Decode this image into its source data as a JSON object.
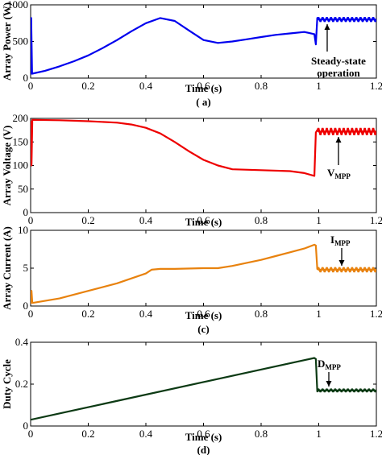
{
  "chart_data": [
    {
      "type": "line",
      "subplot_label": "( a)",
      "xlabel": "Time (s)",
      "ylabel": "Array Power (W)",
      "xlim": [
        0,
        1.2
      ],
      "ylim": [
        0,
        1000
      ],
      "xticks": [
        "0",
        "0.2",
        "0.4",
        "0.6",
        "0.8",
        "1",
        "1.2"
      ],
      "yticks": [
        "0",
        "500",
        "1000"
      ],
      "color": "#0000ee",
      "annotation": {
        "text_lines": [
          "Steady-state",
          "operation"
        ]
      },
      "series": [
        {
          "x": [
            0,
            0.002,
            0.005,
            0.05,
            0.1,
            0.15,
            0.2,
            0.25,
            0.3,
            0.35,
            0.4,
            0.45,
            0.5,
            0.55,
            0.6,
            0.65,
            0.7,
            0.75,
            0.8,
            0.85,
            0.9,
            0.95,
            0.985,
            0.99,
            0.995,
            1.0,
            1.2
          ],
          "y": [
            50,
            820,
            60,
            100,
            160,
            230,
            310,
            410,
            520,
            640,
            750,
            820,
            780,
            650,
            520,
            480,
            500,
            530,
            560,
            590,
            610,
            630,
            600,
            460,
            820,
            800,
            800
          ]
        }
      ]
    },
    {
      "type": "line",
      "subplot_label": "(b)",
      "xlabel": "Time (s)",
      "ylabel": "Array Voltage (V)",
      "xlim": [
        0,
        1.2
      ],
      "ylim": [
        0,
        200
      ],
      "xticks": [
        "0",
        "0.2",
        "0.4",
        "0.6",
        "0.8",
        "1",
        "1.2"
      ],
      "yticks": [
        "0",
        "50",
        "100",
        "150",
        "200"
      ],
      "color": "#ee0000",
      "annotation": {
        "main": "V",
        "sub": "MPP"
      },
      "series": [
        {
          "x": [
            0,
            0.003,
            0.006,
            0.1,
            0.2,
            0.3,
            0.35,
            0.4,
            0.45,
            0.5,
            0.55,
            0.6,
            0.65,
            0.7,
            0.8,
            0.9,
            0.95,
            0.985,
            0.99,
            0.995,
            1.0,
            1.2
          ],
          "y": [
            195,
            100,
            197,
            196,
            194,
            191,
            187,
            180,
            168,
            150,
            130,
            112,
            100,
            92,
            90,
            88,
            84,
            78,
            170,
            175,
            172,
            172
          ]
        }
      ]
    },
    {
      "type": "line",
      "subplot_label": "(c)",
      "xlabel": "Time (s)",
      "ylabel": "Array Current (A)",
      "xlim": [
        0,
        1.2
      ],
      "ylim": [
        0,
        10
      ],
      "xticks": [
        "0",
        "0.2",
        "0.4",
        "0.6",
        "0.8",
        "1",
        "1.2"
      ],
      "yticks": [
        "0",
        "5",
        "10"
      ],
      "color": "#e8820e",
      "annotation": {
        "main": "I",
        "sub": "MPP"
      },
      "series": [
        {
          "x": [
            0,
            0.003,
            0.006,
            0.1,
            0.2,
            0.3,
            0.4,
            0.42,
            0.45,
            0.5,
            0.6,
            0.65,
            0.7,
            0.75,
            0.8,
            0.85,
            0.9,
            0.95,
            0.985,
            0.99,
            0.995,
            1.0,
            1.2
          ],
          "y": [
            0.3,
            2.0,
            0.4,
            1.0,
            2.0,
            3.0,
            4.3,
            4.8,
            4.9,
            4.9,
            5.0,
            5.0,
            5.3,
            5.7,
            6.1,
            6.6,
            7.1,
            7.6,
            8.1,
            8.0,
            4.9,
            4.8,
            4.8
          ]
        }
      ]
    },
    {
      "type": "line",
      "subplot_label": "(d)",
      "xlabel": "Time (s)",
      "ylabel": "Duty Cycle",
      "xlim": [
        0,
        1.2
      ],
      "ylim": [
        0,
        0.4
      ],
      "xticks": [
        "0",
        "0.2",
        "0.4",
        "0.6",
        "0.8",
        "1",
        "1.2"
      ],
      "yticks": [
        "0",
        "0.2",
        "0.4"
      ],
      "color": "#0c3a14",
      "annotation": {
        "main": "D",
        "sub": "MPP"
      },
      "series": [
        {
          "x": [
            0,
            0.985,
            0.99,
            0.995,
            1.0,
            1.2
          ],
          "y": [
            0.03,
            0.325,
            0.32,
            0.165,
            0.17,
            0.17
          ]
        }
      ]
    }
  ]
}
